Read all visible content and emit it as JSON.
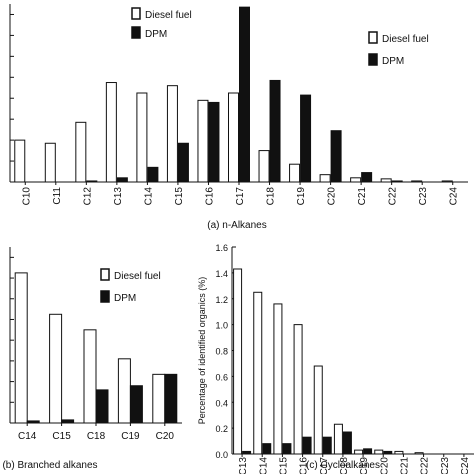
{
  "colors": {
    "series_a": "#ffffff",
    "series_b": "#111111",
    "axis": "#111111"
  },
  "legend_labels": [
    "Diesel fuel",
    "DPM"
  ],
  "chart_data": [
    {
      "type": "bar",
      "caption": "(a) n-Alkanes",
      "categories": [
        "C10",
        "C11",
        "C12",
        "C13",
        "C14",
        "C15",
        "C16",
        "C17",
        "C18",
        "C19",
        "C20",
        "C21",
        "C22",
        "C23",
        "C24"
      ],
      "series": [
        {
          "name": "Diesel fuel",
          "values": [
            0.4,
            0.37,
            0.57,
            0.95,
            0.85,
            0.92,
            0.78,
            0.85,
            0.3,
            0.17,
            0.07,
            0.04,
            0.03,
            0.01,
            0.01
          ]
        },
        {
          "name": "DPM",
          "values": [
            0.0,
            0.0,
            0.01,
            0.04,
            0.14,
            0.37,
            0.76,
            1.67,
            0.97,
            0.83,
            0.49,
            0.09,
            0.01,
            0.0,
            0.0
          ]
        }
      ],
      "ylim": [
        0,
        1.7
      ],
      "legend_position": "top-right"
    },
    {
      "type": "bar",
      "caption": "(b) Branched alkanes",
      "categories": [
        "C14",
        "C15",
        "C18",
        "C19",
        "C20"
      ],
      "series": [
        {
          "name": "Diesel fuel",
          "values": [
            1.45,
            1.05,
            0.9,
            0.62,
            0.47
          ]
        },
        {
          "name": "DPM",
          "values": [
            0.02,
            0.03,
            0.32,
            0.36,
            0.47
          ]
        }
      ],
      "ylim": [
        0,
        1.7
      ],
      "legend_position": "top-right"
    },
    {
      "type": "bar",
      "caption": "(c) Cycloalkanes",
      "ylabel": "Percentage of identified organics (%)",
      "categories": [
        "C13",
        "C14",
        "C15",
        "C16",
        "C17",
        "C18",
        "C19",
        "C20",
        "C21",
        "C22",
        "C23",
        "C24"
      ],
      "yticks": [
        "0.0",
        "0.2",
        "0.4",
        "0.6",
        "0.8",
        "1.0",
        "1.2",
        "1.4",
        "1.6"
      ],
      "series": [
        {
          "name": "Diesel fuel",
          "values": [
            1.43,
            1.25,
            1.16,
            1.0,
            0.68,
            0.23,
            0.03,
            0.03,
            0.02,
            0.01,
            0.0,
            0.0
          ]
        },
        {
          "name": "DPM",
          "values": [
            0.02,
            0.08,
            0.08,
            0.13,
            0.13,
            0.17,
            0.04,
            0.02,
            0.0,
            0.0,
            0.0,
            0.0
          ]
        }
      ],
      "ylim": [
        0,
        1.6
      ],
      "legend_position": "top-right"
    }
  ]
}
